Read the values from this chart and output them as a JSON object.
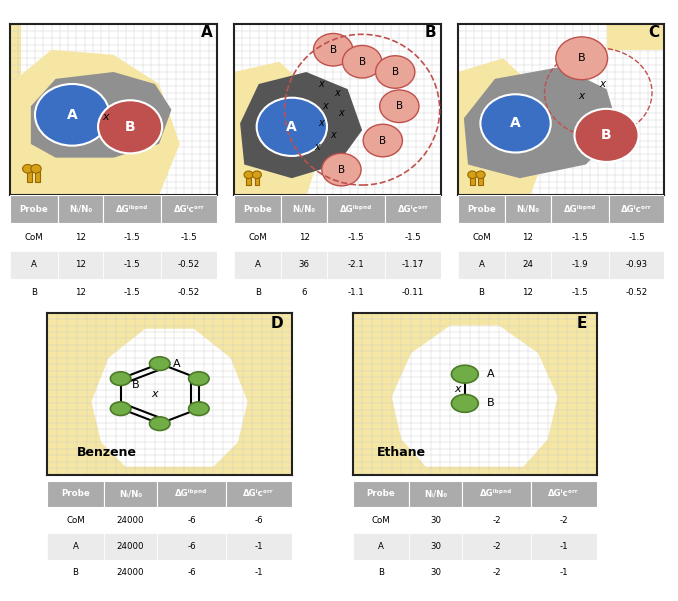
{
  "bg_yellow": "#F5E6A3",
  "bg_white": "#FFFFFF",
  "grid_color": "#CCCCCC",
  "border_color": "#222222",
  "blue": "#3A6FC4",
  "orange_dark": "#C0504D",
  "orange_light": "#E8A598",
  "gray_dark": "#6B6B6B",
  "gray_mid": "#909090",
  "gray_light": "#B0B0B0",
  "green": "#70AD47",
  "green_dark": "#4d7a28",
  "tbl_hdr": "#ABABAB",
  "tbl_row1": "#FFFFFF",
  "tbl_row2": "#EBEBEB",
  "tables": {
    "A": {
      "rows": [
        [
          "CoM",
          "12",
          "-1.5",
          "-1.5"
        ],
        [
          "A",
          "12",
          "-1.5",
          "-0.52"
        ],
        [
          "B",
          "12",
          "-1.5",
          "-0.52"
        ]
      ]
    },
    "B": {
      "rows": [
        [
          "CoM",
          "12",
          "-1.5",
          "-1.5"
        ],
        [
          "A",
          "36",
          "-2.1",
          "-1.17"
        ],
        [
          "B",
          "6",
          "-1.1",
          "-0.11"
        ]
      ]
    },
    "C": {
      "rows": [
        [
          "CoM",
          "12",
          "-1.5",
          "-1.5"
        ],
        [
          "A",
          "24",
          "-1.9",
          "-0.93"
        ],
        [
          "B",
          "12",
          "-1.5",
          "-0.52"
        ]
      ]
    },
    "D": {
      "rows": [
        [
          "CoM",
          "24000",
          "-6",
          "-6"
        ],
        [
          "A",
          "24000",
          "-6",
          "-1"
        ],
        [
          "B",
          "24000",
          "-6",
          "-1"
        ]
      ]
    },
    "E": {
      "rows": [
        [
          "CoM",
          "30",
          "-2",
          "-2"
        ],
        [
          "A",
          "30",
          "-2",
          "-1"
        ],
        [
          "B",
          "30",
          "-2",
          "-1"
        ]
      ]
    }
  }
}
